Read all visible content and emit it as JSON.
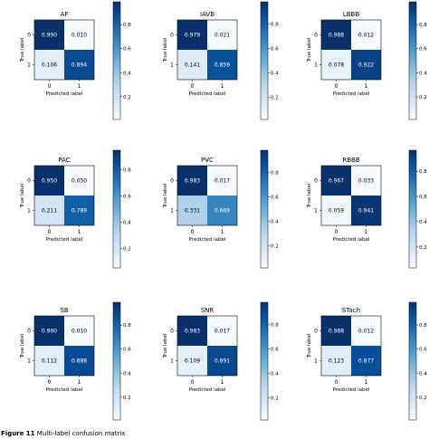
{
  "figure_caption": {
    "label": "Figure 11",
    "text": "Multi-label confusion matrix"
  },
  "chart_data": [
    {
      "type": "heatmap",
      "title": "AF",
      "xlabel": "Predicted label",
      "ylabel": "True label",
      "x_ticks": [
        "0",
        "1"
      ],
      "y_ticks": [
        "0",
        "1"
      ],
      "values": [
        [
          0.99,
          0.01
        ],
        [
          0.106,
          0.894
        ]
      ],
      "value_labels": [
        [
          "0.990",
          "0.010"
        ],
        [
          "0.106",
          "0.894"
        ]
      ],
      "colormap": "Blues",
      "colorbar_ticks": [
        "0.2",
        "0.4",
        "0.6",
        "0.8"
      ],
      "colorbar_range": [
        0.01,
        0.99
      ]
    },
    {
      "type": "heatmap",
      "title": "IAVB",
      "xlabel": "Predicted label",
      "ylabel": "True label",
      "x_ticks": [
        "0",
        "1"
      ],
      "y_ticks": [
        "0",
        "1"
      ],
      "values": [
        [
          0.979,
          0.021
        ],
        [
          0.141,
          0.859
        ]
      ],
      "value_labels": [
        [
          "0.979",
          "0.021"
        ],
        [
          "0.141",
          "0.859"
        ]
      ],
      "colormap": "Blues",
      "colorbar_ticks": [
        "0.2",
        "0.4",
        "0.6",
        "0.8"
      ],
      "colorbar_range": [
        0.021,
        0.979
      ]
    },
    {
      "type": "heatmap",
      "title": "LBBB",
      "xlabel": "Predicted label",
      "ylabel": "True label",
      "x_ticks": [
        "0",
        "1"
      ],
      "y_ticks": [
        "0",
        "1"
      ],
      "values": [
        [
          0.988,
          0.012
        ],
        [
          0.078,
          0.922
        ]
      ],
      "value_labels": [
        [
          "0.988",
          "0.012"
        ],
        [
          "0.078",
          "0.922"
        ]
      ],
      "colormap": "Blues",
      "colorbar_ticks": [
        "0.2",
        "0.4",
        "0.6",
        "0.8"
      ],
      "colorbar_range": [
        0.012,
        0.988
      ]
    },
    {
      "type": "heatmap",
      "title": "PAC",
      "xlabel": "Predicted label",
      "ylabel": "True label",
      "x_ticks": [
        "0",
        "1"
      ],
      "y_ticks": [
        "0",
        "1"
      ],
      "values": [
        [
          0.95,
          0.05
        ],
        [
          0.211,
          0.789
        ]
      ],
      "value_labels": [
        [
          "0.950",
          "0.050"
        ],
        [
          "0.211",
          "0.789"
        ]
      ],
      "colormap": "Blues",
      "colorbar_ticks": [
        "0.2",
        "0.4",
        "0.6",
        "0.8"
      ],
      "colorbar_range": [
        0.05,
        0.95
      ]
    },
    {
      "type": "heatmap",
      "title": "PVC",
      "xlabel": "Predicted label",
      "ylabel": "True label",
      "x_ticks": [
        "0",
        "1"
      ],
      "y_ticks": [
        "0",
        "1"
      ],
      "values": [
        [
          0.983,
          0.017
        ],
        [
          0.331,
          0.669
        ]
      ],
      "value_labels": [
        [
          "0.983",
          "0.017"
        ],
        [
          "0.331",
          "0.669"
        ]
      ],
      "colormap": "Blues",
      "colorbar_ticks": [
        "0.2",
        "0.4",
        "0.6",
        "0.8"
      ],
      "colorbar_range": [
        0.017,
        0.983
      ]
    },
    {
      "type": "heatmap",
      "title": "RBBB",
      "xlabel": "Predicted label",
      "ylabel": "True label",
      "x_ticks": [
        "0",
        "1"
      ],
      "y_ticks": [
        "0",
        "1"
      ],
      "values": [
        [
          0.967,
          0.033
        ],
        [
          0.059,
          0.941
        ]
      ],
      "value_labels": [
        [
          "0.967",
          "0.033"
        ],
        [
          "0.059",
          "0.941"
        ]
      ],
      "colormap": "Blues",
      "colorbar_ticks": [
        "0.2",
        "0.4",
        "0.6",
        "0.8"
      ],
      "colorbar_range": [
        0.033,
        0.967
      ]
    },
    {
      "type": "heatmap",
      "title": "SB",
      "xlabel": "Predicted label",
      "ylabel": "True label",
      "x_ticks": [
        "0",
        "1"
      ],
      "y_ticks": [
        "0",
        "1"
      ],
      "values": [
        [
          0.99,
          0.01
        ],
        [
          0.112,
          0.888
        ]
      ],
      "value_labels": [
        [
          "0.990",
          "0.010"
        ],
        [
          "0.112",
          "0.888"
        ]
      ],
      "colormap": "Blues",
      "colorbar_ticks": [
        "0.2",
        "0.4",
        "0.6",
        "0.8"
      ],
      "colorbar_range": [
        0.01,
        0.99
      ]
    },
    {
      "type": "heatmap",
      "title": "SNR",
      "xlabel": "Predicted label",
      "ylabel": "True label",
      "x_ticks": [
        "0",
        "1"
      ],
      "y_ticks": [
        "0",
        "1"
      ],
      "values": [
        [
          0.983,
          0.017
        ],
        [
          0.109,
          0.891
        ]
      ],
      "value_labels": [
        [
          "0.983",
          "0.017"
        ],
        [
          "0.109",
          "0.891"
        ]
      ],
      "colormap": "Blues",
      "colorbar_ticks": [
        "0.2",
        "0.4",
        "0.6",
        "0.8"
      ],
      "colorbar_range": [
        0.017,
        0.983
      ]
    },
    {
      "type": "heatmap",
      "title": "STach",
      "xlabel": "Predicted label",
      "ylabel": "True label",
      "x_ticks": [
        "0",
        "1"
      ],
      "y_ticks": [
        "0",
        "1"
      ],
      "values": [
        [
          0.988,
          0.012
        ],
        [
          0.123,
          0.877
        ]
      ],
      "value_labels": [
        [
          "0.988",
          "0.012"
        ],
        [
          "0.123",
          "0.877"
        ]
      ],
      "colormap": "Blues",
      "colorbar_ticks": [
        "0.2",
        "0.4",
        "0.6",
        "0.8"
      ],
      "colorbar_range": [
        0.012,
        0.988
      ]
    }
  ]
}
